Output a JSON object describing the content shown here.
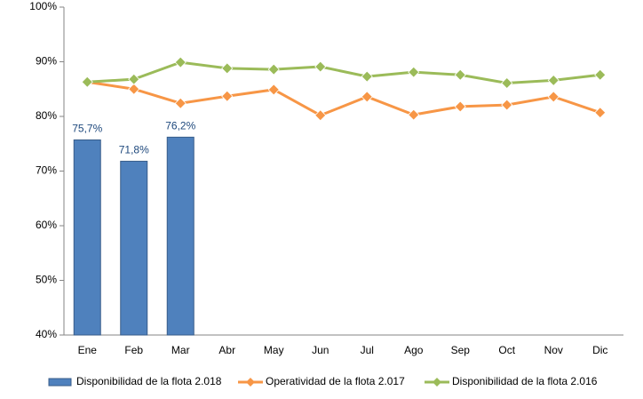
{
  "chart_data": {
    "type": "bar-line",
    "categories": [
      "Ene",
      "Feb",
      "Mar",
      "Abr",
      "May",
      "Jun",
      "Jul",
      "Ago",
      "Sep",
      "Oct",
      "Nov",
      "Dic"
    ],
    "series": [
      {
        "name": "Disponibilidad de la flota 2.018",
        "type": "bar",
        "color": "#4f81bd",
        "values": [
          75.7,
          71.8,
          76.2,
          null,
          null,
          null,
          null,
          null,
          null,
          null,
          null,
          null
        ],
        "value_labels": [
          "75,7%",
          "71,8%",
          "76,2%",
          null,
          null,
          null,
          null,
          null,
          null,
          null,
          null,
          null
        ]
      },
      {
        "name": "Operatividad de la flota 2.017",
        "type": "line",
        "color": "#f79646",
        "values": [
          86.3,
          85.0,
          82.4,
          83.7,
          84.9,
          80.2,
          83.6,
          80.3,
          81.8,
          82.1,
          83.6,
          80.7
        ]
      },
      {
        "name": "Disponibilidad de la flota 2.016",
        "type": "line",
        "color": "#9bbb59",
        "values": [
          86.3,
          86.8,
          89.9,
          88.8,
          88.6,
          89.1,
          87.3,
          88.1,
          87.6,
          86.1,
          86.6,
          87.6
        ]
      }
    ],
    "ylim": [
      40,
      100
    ],
    "yticks": [
      {
        "value": 40,
        "label": "40%"
      },
      {
        "value": 50,
        "label": "50%"
      },
      {
        "value": 60,
        "label": "60%"
      },
      {
        "value": 70,
        "label": "70%"
      },
      {
        "value": 80,
        "label": "80%"
      },
      {
        "value": 90,
        "label": "90%"
      },
      {
        "value": 100,
        "label": "100%"
      }
    ],
    "grid": false,
    "legend": "bottom"
  }
}
